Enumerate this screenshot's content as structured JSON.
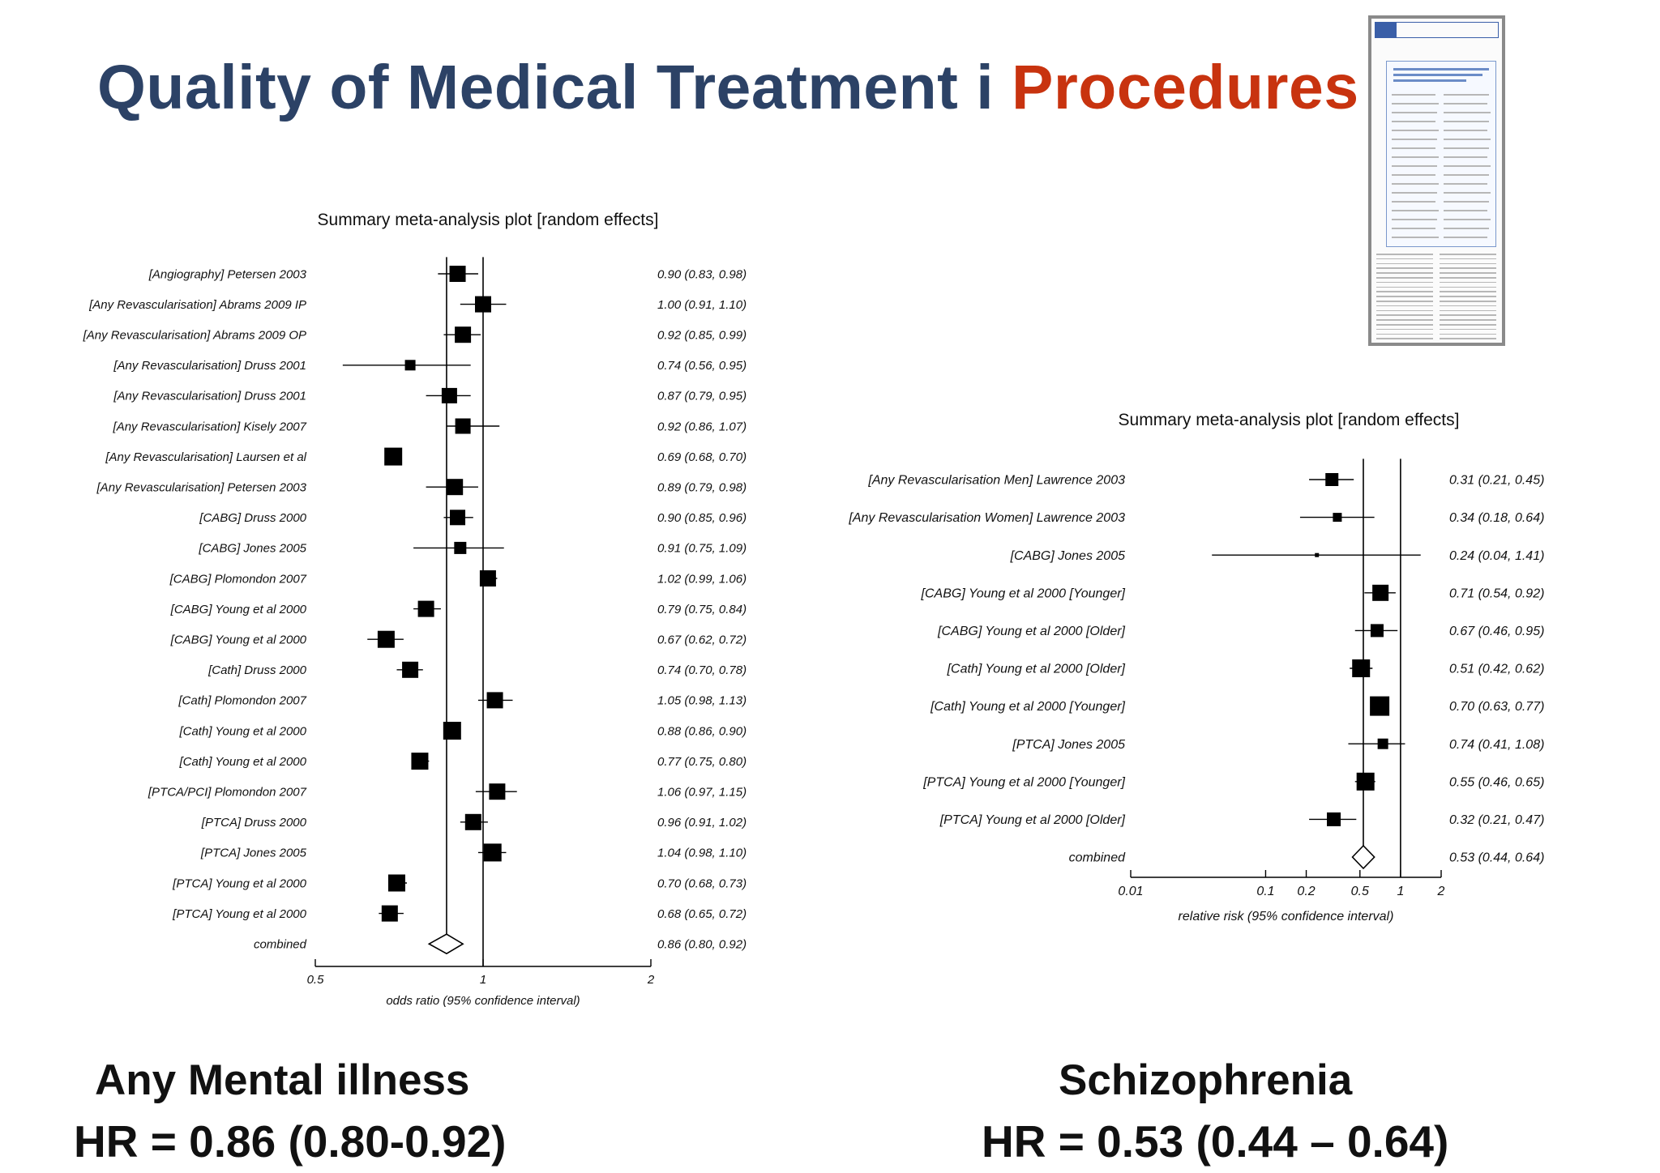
{
  "header": {
    "title_main": "Quality of Medical Treatment i ",
    "title_accent": "Procedures"
  },
  "colors": {
    "title": "#2c4266",
    "accent": "#c8330f",
    "marker": "#000000"
  },
  "left_panel": {
    "label": "Any Mental illness",
    "hr": "HR = 0.86 (0.80-0.92)"
  },
  "right_panel": {
    "label": "Schizophrenia",
    "hr": "HR = 0.53 (0.44 – 0.64)"
  },
  "thumbnail": {
    "icon": "journal-article-thumbnail-icon"
  },
  "chart_data": [
    {
      "type": "forest",
      "title": "Summary meta-analysis plot [random effects]",
      "xlabel": "odds ratio (95% confidence interval)",
      "scale": "log",
      "xlim": [
        0.5,
        2
      ],
      "xticks": [
        "0.5",
        "1",
        "2"
      ],
      "studies": [
        {
          "label": "[Angiography] Petersen 2003",
          "est": 0.9,
          "lo": 0.83,
          "hi": 0.98,
          "ci": "0.90 (0.83, 0.98)",
          "w": 20
        },
        {
          "label": "[Any Revascularisation] Abrams 2009 IP",
          "est": 1.0,
          "lo": 0.91,
          "hi": 1.1,
          "ci": "1.00 (0.91, 1.10)",
          "w": 20
        },
        {
          "label": "[Any Revascularisation] Abrams 2009 OP",
          "est": 0.92,
          "lo": 0.85,
          "hi": 0.99,
          "ci": "0.92 (0.85, 0.99)",
          "w": 20
        },
        {
          "label": "[Any Revascularisation] Druss 2001",
          "est": 0.74,
          "lo": 0.56,
          "hi": 0.95,
          "ci": "0.74 (0.56, 0.95)",
          "w": 13
        },
        {
          "label": "[Any Revascularisation] Druss 2001",
          "est": 0.87,
          "lo": 0.79,
          "hi": 0.95,
          "ci": "0.87 (0.79, 0.95)",
          "w": 19
        },
        {
          "label": "[Any Revascularisation] Kisely 2007",
          "est": 0.92,
          "lo": 0.86,
          "hi": 1.07,
          "ci": "0.92 (0.86, 1.07)",
          "w": 19
        },
        {
          "label": "[Any Revascularisation] Laursen et al",
          "est": 0.69,
          "lo": 0.68,
          "hi": 0.7,
          "ci": "0.69 (0.68, 0.70)",
          "w": 22
        },
        {
          "label": "[Any Revascularisation] Petersen 2003",
          "est": 0.89,
          "lo": 0.79,
          "hi": 0.98,
          "ci": "0.89 (0.79, 0.98)",
          "w": 20
        },
        {
          "label": "[CABG] Druss 2000",
          "est": 0.9,
          "lo": 0.85,
          "hi": 0.96,
          "ci": "0.90 (0.85, 0.96)",
          "w": 19
        },
        {
          "label": "[CABG] Jones 2005",
          "est": 0.91,
          "lo": 0.75,
          "hi": 1.09,
          "ci": "0.91 (0.75, 1.09)",
          "w": 15
        },
        {
          "label": "[CABG] Plomondon 2007",
          "est": 1.02,
          "lo": 0.99,
          "hi": 1.06,
          "ci": "1.02 (0.99, 1.06)",
          "w": 20
        },
        {
          "label": "[CABG] Young et al 2000",
          "est": 0.79,
          "lo": 0.75,
          "hi": 0.84,
          "ci": "0.79 (0.75, 0.84)",
          "w": 20
        },
        {
          "label": "[CABG] Young et al 2000",
          "est": 0.67,
          "lo": 0.62,
          "hi": 0.72,
          "ci": "0.67 (0.62, 0.72)",
          "w": 21
        },
        {
          "label": "[Cath] Druss 2000",
          "est": 0.74,
          "lo": 0.7,
          "hi": 0.78,
          "ci": "0.74 (0.70, 0.78)",
          "w": 20
        },
        {
          "label": "[Cath] Plomondon 2007",
          "est": 1.05,
          "lo": 0.98,
          "hi": 1.13,
          "ci": "1.05 (0.98, 1.13)",
          "w": 20
        },
        {
          "label": "[Cath] Young et al 2000",
          "est": 0.88,
          "lo": 0.86,
          "hi": 0.9,
          "ci": "0.88 (0.86, 0.90)",
          "w": 22
        },
        {
          "label": "[Cath] Young et al 2000",
          "est": 0.77,
          "lo": 0.75,
          "hi": 0.8,
          "ci": "0.77 (0.75, 0.80)",
          "w": 21
        },
        {
          "label": "[PTCA/PCI] Plomondon 2007",
          "est": 1.06,
          "lo": 0.97,
          "hi": 1.15,
          "ci": "1.06 (0.97, 1.15)",
          "w": 20
        },
        {
          "label": "[PTCA] Druss 2000",
          "est": 0.96,
          "lo": 0.91,
          "hi": 1.02,
          "ci": "0.96 (0.91, 1.02)",
          "w": 20
        },
        {
          "label": "[PTCA] Jones 2005",
          "est": 1.04,
          "lo": 0.98,
          "hi": 1.1,
          "ci": "1.04 (0.98, 1.10)",
          "w": 22
        },
        {
          "label": "[PTCA] Young et al 2000",
          "est": 0.7,
          "lo": 0.68,
          "hi": 0.73,
          "ci": "0.70 (0.68, 0.73)",
          "w": 21
        },
        {
          "label": "[PTCA] Young et al 2000",
          "est": 0.68,
          "lo": 0.65,
          "hi": 0.72,
          "ci": "0.68 (0.65, 0.72)",
          "w": 20
        }
      ],
      "combined": {
        "label": "combined",
        "est": 0.86,
        "lo": 0.8,
        "hi": 0.92,
        "ci": "0.86 (0.80, 0.92)"
      }
    },
    {
      "type": "forest",
      "title": "Summary meta-analysis plot [random effects]",
      "xlabel": "relative risk (95% confidence interval)",
      "scale": "log",
      "xlim": [
        0.01,
        2
      ],
      "xticks": [
        "0.01",
        "0.1",
        "0.2",
        "0.5",
        "1",
        "2"
      ],
      "studies": [
        {
          "label": "[Any Revascularisation Men] Lawrence 2003",
          "est": 0.31,
          "lo": 0.21,
          "hi": 0.45,
          "ci": "0.31 (0.21, 0.45)",
          "w": 16
        },
        {
          "label": "[Any Revascularisation Women] Lawrence 2003",
          "est": 0.34,
          "lo": 0.18,
          "hi": 0.64,
          "ci": "0.34 (0.18, 0.64)",
          "w": 11
        },
        {
          "label": "[CABG] Jones 2005",
          "est": 0.24,
          "lo": 0.04,
          "hi": 1.41,
          "ci": "0.24 (0.04, 1.41)",
          "w": 5
        },
        {
          "label": "[CABG] Young et al 2000  [Younger]",
          "est": 0.71,
          "lo": 0.54,
          "hi": 0.92,
          "ci": "0.71 (0.54, 0.92)",
          "w": 20
        },
        {
          "label": "[CABG] Young et al 2000 [Older]",
          "est": 0.67,
          "lo": 0.46,
          "hi": 0.95,
          "ci": "0.67 (0.46, 0.95)",
          "w": 16
        },
        {
          "label": "[Cath] Young et al 2000 [Older]",
          "est": 0.51,
          "lo": 0.42,
          "hi": 0.62,
          "ci": "0.51 (0.42, 0.62)",
          "w": 22
        },
        {
          "label": "[Cath] Young et al 2000 [Younger]",
          "est": 0.7,
          "lo": 0.63,
          "hi": 0.77,
          "ci": "0.70 (0.63, 0.77)",
          "w": 24
        },
        {
          "label": "[PTCA] Jones 2005",
          "est": 0.74,
          "lo": 0.41,
          "hi": 1.08,
          "ci": "0.74 (0.41, 1.08)",
          "w": 13
        },
        {
          "label": "[PTCA] Young et al 2000  [Younger]",
          "est": 0.55,
          "lo": 0.46,
          "hi": 0.65,
          "ci": "0.55 (0.46, 0.65)",
          "w": 22
        },
        {
          "label": "[PTCA] Young et al 2000 [Older]",
          "est": 0.32,
          "lo": 0.21,
          "hi": 0.47,
          "ci": "0.32 (0.21, 0.47)",
          "w": 17
        }
      ],
      "combined": {
        "label": "combined",
        "est": 0.53,
        "lo": 0.44,
        "hi": 0.64,
        "ci": "0.53 (0.44, 0.64)"
      }
    }
  ]
}
